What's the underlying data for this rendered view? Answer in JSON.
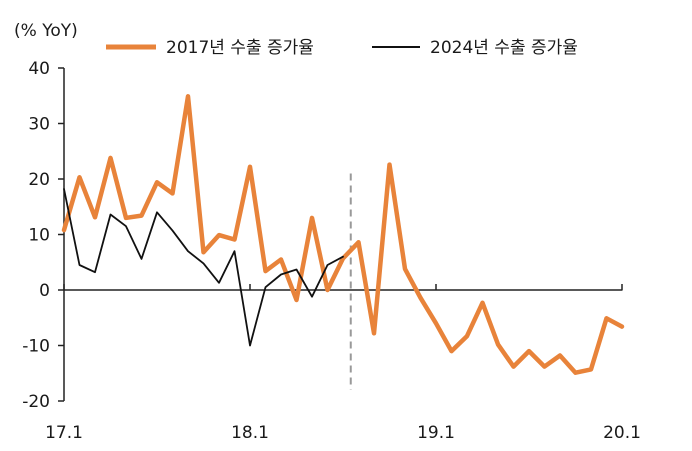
{
  "chart_data": {
    "type": "line",
    "unit_label": "(% YoY)",
    "xlabel": "",
    "ylabel": "",
    "ylim": [
      -20,
      40
    ],
    "y_ticks": [
      "40",
      "30",
      "20",
      "10",
      "0",
      "-10",
      "-20"
    ],
    "x_ticks": [
      "17.1",
      "18.1",
      "19.1",
      "20.1"
    ],
    "legend_position": "top",
    "grid": false,
    "vertical_marker": {
      "style": "dashed",
      "color": "#999999",
      "x_index": 18.5
    },
    "series": [
      {
        "name": "2017년 수출 증가율",
        "color": "#E8833A",
        "values": [
          10.8,
          20.3,
          13.1,
          23.8,
          13.0,
          13.4,
          19.4,
          17.4,
          34.9,
          6.8,
          9.9,
          9.1,
          22.2,
          3.4,
          5.5,
          -1.8,
          13.0,
          0.0,
          5.7,
          8.6,
          -7.8,
          22.6,
          3.8,
          -1.4,
          -6.0,
          -11.0,
          -8.3,
          -2.3,
          -9.8,
          -13.8,
          -11.0,
          -13.8,
          -11.8,
          -14.9,
          -14.3,
          -5.1,
          -6.6
        ]
      },
      {
        "name": "2024년 수출 증가율",
        "color": "#111111",
        "values": [
          18.2,
          4.5,
          3.2,
          13.6,
          11.5,
          5.6,
          14.0,
          10.7,
          7.0,
          4.8,
          1.3,
          7.0,
          -10.0,
          0.5,
          2.8,
          3.7,
          -1.2,
          4.5,
          6.0
        ]
      }
    ]
  }
}
